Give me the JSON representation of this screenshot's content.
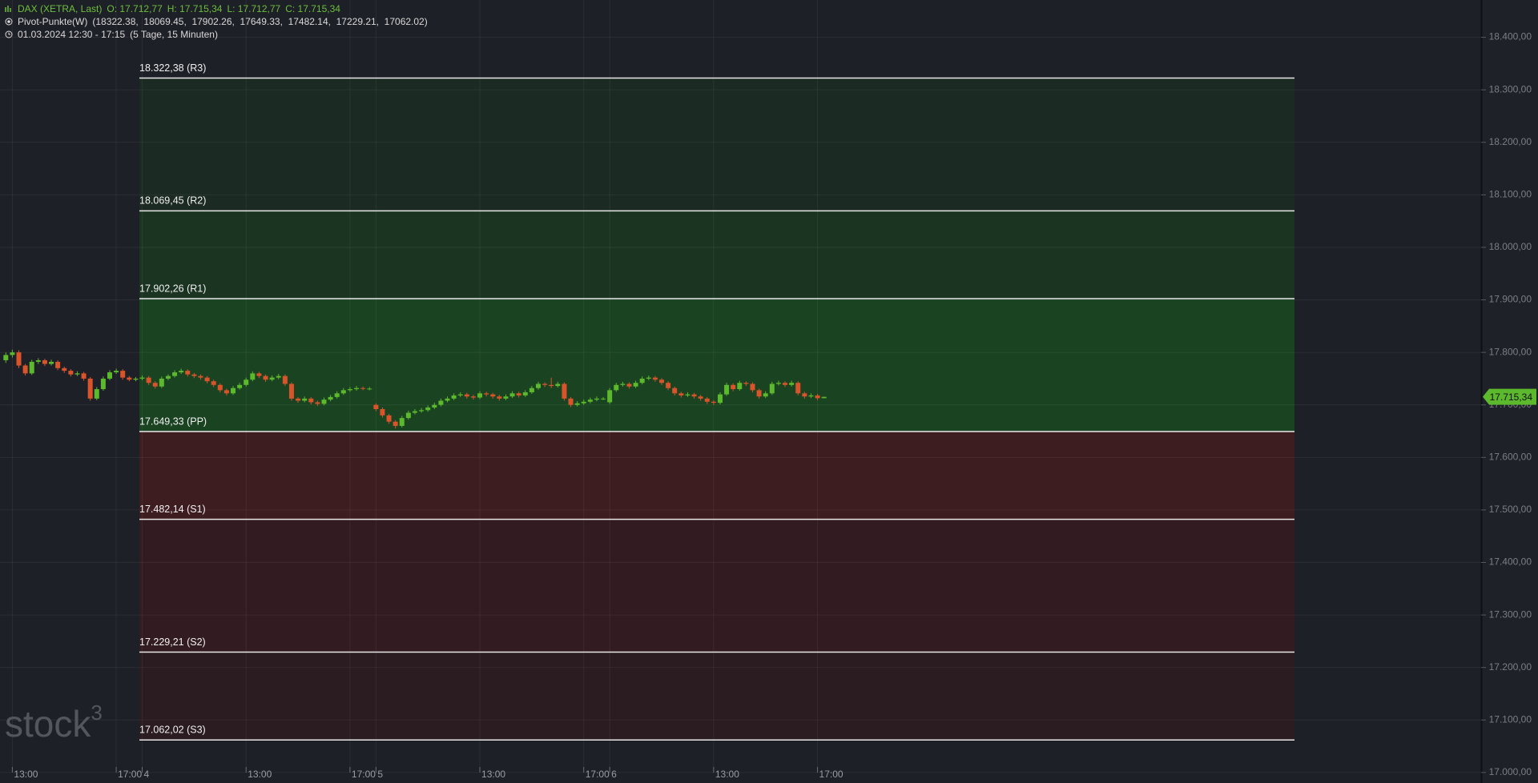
{
  "chart_data": {
    "type": "candlestick",
    "instrument": "DAX (XETRA, Last)",
    "ohlc_legend": [
      "O: 17.712,77",
      "H: 17.715,34",
      "L: 17.712,77",
      "C: 17.715,34"
    ],
    "indicator": "Pivot-Punkte(W)",
    "indicator_values": "(18322.38,  18069.45,  17902.26,  17649.33,  17482.14,  17229.21,  17062.02)",
    "range_text": "01.03.2024 12:30 - 17:15",
    "range_detail": "(5 Tage, 15 Minuten)",
    "watermark": [
      "stock",
      "3"
    ],
    "up_color": "#5cb82c",
    "down_color": "#d9542b",
    "grid": true,
    "levels": [
      18322.38,
      18069.45,
      17902.26,
      17649.33,
      17482.14,
      17229.21,
      17062.02
    ],
    "value_labels": [
      "18.322,38 (R3)",
      "18.069,45 (R2)",
      "17.902,26 (R1)",
      "17.649,33 (PP)",
      "17.482,14 (S1)",
      "17.229,21 (S2)",
      "17.062,02 (S3)"
    ],
    "zone_colors": [
      "#1b2a22",
      "#1b3421",
      "#1a4321",
      "#3e1d21",
      "#321c21",
      "#2a1c21"
    ],
    "last_price": 17715.34,
    "last_price_label": "17.715,34",
    "xlim": [
      -21.9,
      206.2
    ],
    "xticks": [
      {
        "value": -20,
        "label": "13:00"
      },
      {
        "value": -4,
        "label": "17:00"
      },
      {
        "value": 0,
        "label": "4"
      },
      {
        "value": 16,
        "label": "13:00"
      },
      {
        "value": 32,
        "label": "17:00"
      },
      {
        "value": 36,
        "label": "5"
      },
      {
        "value": 52,
        "label": "13:00"
      },
      {
        "value": 68,
        "label": "17:00"
      },
      {
        "value": 72,
        "label": "6"
      },
      {
        "value": 88,
        "label": "13:00"
      },
      {
        "value": 104,
        "label": "17:00"
      }
    ],
    "ylim": [
      16980,
      18471
    ],
    "yticks": [
      {
        "value": 17000,
        "label": "17.000,00"
      },
      {
        "value": 17100,
        "label": "17.100,00"
      },
      {
        "value": 17200,
        "label": "17.200,00"
      },
      {
        "value": 17300,
        "label": "17.300,00"
      },
      {
        "value": 17400,
        "label": "17.400,00"
      },
      {
        "value": 17500,
        "label": "17.500,00"
      },
      {
        "value": 17600,
        "label": "17.600,00"
      },
      {
        "value": 17700,
        "label": "17.700,00"
      },
      {
        "value": 17800,
        "label": "17.800,00"
      },
      {
        "value": 17900,
        "label": "17.900,00"
      },
      {
        "value": 18000,
        "label": "18.000,00"
      },
      {
        "value": 18100,
        "label": "18.100,00"
      },
      {
        "value": 18200,
        "label": "18.200,00"
      },
      {
        "value": 18300,
        "label": "18.300,00"
      },
      {
        "value": 18400,
        "label": "18.400,00"
      }
    ],
    "x": [
      -21,
      -20,
      -19,
      -18,
      -17,
      -16,
      -15,
      -14,
      -13,
      -12,
      -11,
      -10,
      -9,
      -8,
      -7,
      -6,
      -5,
      -4,
      -3,
      -2,
      -1,
      0,
      1,
      2,
      3,
      4,
      5,
      6,
      7,
      8,
      9,
      10,
      11,
      12,
      13,
      14,
      15,
      16,
      17,
      18,
      19,
      20,
      21,
      22,
      23,
      24,
      25,
      26,
      27,
      28,
      29,
      30,
      31,
      32,
      33,
      34,
      35,
      36,
      37,
      38,
      39,
      40,
      41,
      42,
      43,
      44,
      45,
      46,
      47,
      48,
      49,
      50,
      51,
      52,
      53,
      54,
      55,
      56,
      57,
      58,
      59,
      60,
      61,
      62,
      63,
      64,
      65,
      66,
      67,
      68,
      69,
      70,
      71,
      72,
      73,
      74,
      75,
      76,
      77,
      78,
      79,
      80,
      81,
      82,
      83,
      84,
      85,
      86,
      87,
      88,
      89,
      90,
      91,
      92,
      93,
      94,
      95,
      96,
      97,
      98,
      99,
      100,
      101,
      102,
      103,
      104,
      105
    ],
    "open": [
      17785,
      17795,
      17800,
      17775,
      17760,
      17782,
      17785,
      17778,
      17782,
      17770,
      17765,
      17758,
      17760,
      17750,
      17712,
      17730,
      17750,
      17762,
      17765,
      17752,
      17748,
      17750,
      17752,
      17742,
      17735,
      17750,
      17755,
      17762,
      17765,
      17758,
      17755,
      17752,
      17745,
      17738,
      17728,
      17722,
      17732,
      17738,
      17748,
      17760,
      17755,
      17748,
      17752,
      17755,
      17740,
      17712,
      17708,
      17712,
      17705,
      17702,
      17710,
      17715,
      17722,
      17728,
      17730,
      17732,
      17731,
      17700,
      17692,
      17680,
      17668,
      17660,
      17675,
      17685,
      17688,
      17690,
      17695,
      17700,
      17708,
      17712,
      17718,
      17720,
      17716,
      17714,
      17722,
      17720,
      17716,
      17712,
      17716,
      17722,
      17718,
      17724,
      17732,
      17740,
      17738,
      17736,
      17740,
      17712,
      17700,
      17703,
      17706,
      17710,
      17712,
      17705,
      17728,
      17738,
      17740,
      17735,
      17742,
      17750,
      17752,
      17748,
      17742,
      17732,
      17722,
      17718,
      17720,
      17716,
      17712,
      17706,
      17704,
      17720,
      17738,
      17730,
      17742,
      17740,
      17728,
      17716,
      17722,
      17740,
      17742,
      17738,
      17742,
      17722,
      17716,
      17718,
      17712.77
    ],
    "high": [
      17800,
      17805,
      17804,
      17778,
      17786,
      17789,
      17788,
      17786,
      17785,
      17773,
      17768,
      17764,
      17763,
      17753,
      17734,
      17754,
      17766,
      17769,
      17768,
      17755,
      17753,
      17756,
      17755,
      17745,
      17754,
      17758,
      17766,
      17769,
      17768,
      17761,
      17758,
      17755,
      17748,
      17741,
      17731,
      17736,
      17742,
      17752,
      17764,
      17763,
      17758,
      17756,
      17759,
      17758,
      17743,
      17715,
      17716,
      17715,
      17708,
      17714,
      17719,
      17726,
      17732,
      17734,
      17736,
      17735,
      17734,
      17703,
      17695,
      17683,
      17671,
      17679,
      17689,
      17692,
      17694,
      17699,
      17704,
      17712,
      17716,
      17722,
      17724,
      17723,
      17719,
      17726,
      17725,
      17723,
      17719,
      17720,
      17726,
      17725,
      17728,
      17736,
      17744,
      17743,
      17752,
      17744,
      17743,
      17715,
      17707,
      17710,
      17714,
      17716,
      17715,
      17732,
      17742,
      17744,
      17743,
      17746,
      17754,
      17756,
      17755,
      17751,
      17745,
      17735,
      17725,
      17724,
      17723,
      17719,
      17715,
      17709,
      17724,
      17742,
      17741,
      17746,
      17745,
      17743,
      17731,
      17726,
      17744,
      17746,
      17745,
      17746,
      17745,
      17725,
      17722,
      17721,
      17715.34
    ],
    "low": [
      17780,
      17790,
      17770,
      17756,
      17757,
      17778,
      17774,
      17775,
      17766,
      17761,
      17754,
      17755,
      17746,
      17708,
      17709,
      17727,
      17747,
      17759,
      17748,
      17745,
      17745,
      17747,
      17738,
      17731,
      17732,
      17747,
      17752,
      17759,
      17754,
      17751,
      17748,
      17741,
      17734,
      17724,
      17718,
      17719,
      17729,
      17735,
      17745,
      17751,
      17744,
      17745,
      17749,
      17736,
      17708,
      17704,
      17705,
      17701,
      17698,
      17699,
      17707,
      17712,
      17719,
      17725,
      17727,
      17728,
      17728,
      17688,
      17676,
      17664,
      17655,
      17657,
      17672,
      17682,
      17685,
      17687,
      17692,
      17697,
      17705,
      17709,
      17715,
      17712,
      17710,
      17711,
      17716,
      17712,
      17708,
      17709,
      17713,
      17714,
      17715,
      17721,
      17729,
      17734,
      17732,
      17733,
      17708,
      17696,
      17697,
      17700,
      17703,
      17707,
      17709,
      17702,
      17725,
      17735,
      17731,
      17732,
      17739,
      17747,
      17744,
      17738,
      17728,
      17718,
      17714,
      17715,
      17712,
      17708,
      17702,
      17700,
      17701,
      17717,
      17726,
      17727,
      17736,
      17724,
      17712,
      17713,
      17719,
      17737,
      17734,
      17735,
      17718,
      17712,
      17713,
      17709,
      17712.77
    ],
    "close": [
      17795,
      17800,
      17775,
      17760,
      17782,
      17785,
      17778,
      17782,
      17770,
      17765,
      17758,
      17760,
      17750,
      17712,
      17730,
      17750,
      17762,
      17765,
      17752,
      17748,
      17750,
      17752,
      17742,
      17735,
      17750,
      17755,
      17762,
      17765,
      17758,
      17755,
      17752,
      17745,
      17738,
      17728,
      17722,
      17732,
      17738,
      17748,
      17760,
      17755,
      17748,
      17752,
      17755,
      17740,
      17712,
      17708,
      17712,
      17705,
      17702,
      17710,
      17715,
      17722,
      17728,
      17730,
      17732,
      17731,
      17731,
      17692,
      17680,
      17668,
      17660,
      17675,
      17685,
      17688,
      17690,
      17695,
      17700,
      17708,
      17712,
      17718,
      17720,
      17716,
      17714,
      17722,
      17720,
      17716,
      17712,
      17716,
      17722,
      17718,
      17724,
      17732,
      17740,
      17738,
      17736,
      17740,
      17712,
      17700,
      17703,
      17706,
      17710,
      17712,
      17712,
      17728,
      17738,
      17740,
      17735,
      17742,
      17750,
      17752,
      17748,
      17742,
      17732,
      17722,
      17718,
      17720,
      17716,
      17712,
      17706,
      17704,
      17720,
      17738,
      17730,
      17742,
      17740,
      17728,
      17716,
      17722,
      17740,
      17742,
      17738,
      17742,
      17722,
      17716,
      17718,
      17712.77,
      17715.34
    ]
  }
}
